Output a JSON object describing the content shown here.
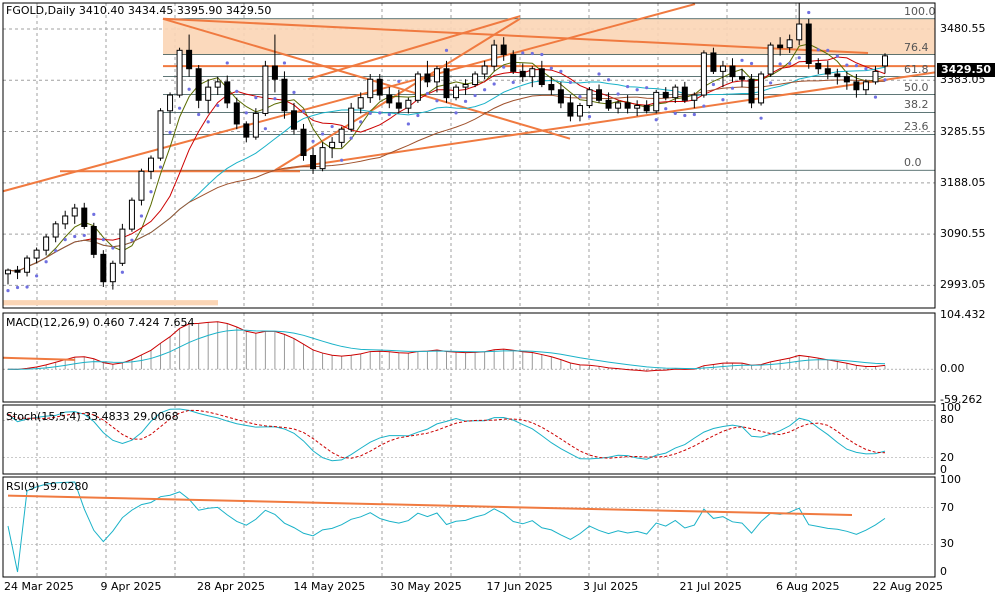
{
  "header": {
    "main": "FGOLD,Daily  3410.40 3434.45 3395.90 3429.50",
    "macd": "MACD(12,26,9) 0.460 7.424 7.654",
    "stoch": "Stoch(15,5,4) 33.4833 29.0068",
    "rsi": "RSI(9) 59.0280"
  },
  "current_price": "3429.50",
  "y_ticks": [
    "3480.55",
    "3383.05",
    "3285.55",
    "3188.05",
    "3090.55",
    "2993.05"
  ],
  "macd_ticks": [
    "104.432",
    "0.00",
    "-59.262"
  ],
  "stoch_ticks": [
    "100",
    "80",
    "20",
    "0"
  ],
  "rsi_ticks": [
    "100",
    "70",
    "30",
    "0"
  ],
  "fib_labels": [
    "100.0",
    "76.4",
    "61.8",
    "50.0",
    "38.2",
    "23.6",
    "0.0"
  ],
  "date_labels": [
    "24 Mar 2025",
    "9 Apr 2025",
    "28 Apr 2025",
    "14 May 2025",
    "30 May 2025",
    "17 Jun 2025",
    "3 Jul 2025",
    "21 Jul 2025",
    "6 Aug 2025",
    "22 Aug 2025"
  ],
  "colors": {
    "candle_up": "#ffffff",
    "candle_down": "#000000",
    "trendline": "#f07a40",
    "zone": "#fbd5b5",
    "ma_red": "#cc0000",
    "ma_cyan": "#1ab2c8",
    "ma_olive": "#5a6b00",
    "ma_brown": "#a0522d",
    "sar": "#7070e0",
    "grid": "#a0a0a0"
  },
  "chart_data": {
    "type": "candlestick",
    "symbol": "FGOLD",
    "timeframe": "Daily",
    "last": {
      "open": 3410.4,
      "high": 3434.45,
      "low": 3395.9,
      "close": 3429.5
    },
    "ylim": [
      2950,
      3530
    ],
    "fib_levels": {
      "100.0": 3500,
      "76.4": 3432,
      "61.8": 3390,
      "50.0": 3356,
      "38.2": 3322,
      "23.6": 3280,
      "0.0": 3212
    },
    "ohlc": [
      [
        3015,
        3025,
        2995,
        3022
      ],
      [
        3022,
        3030,
        3005,
        3018
      ],
      [
        3018,
        3050,
        3010,
        3045
      ],
      [
        3045,
        3065,
        3035,
        3060
      ],
      [
        3060,
        3090,
        3050,
        3085
      ],
      [
        3085,
        3115,
        3075,
        3110
      ],
      [
        3110,
        3135,
        3100,
        3125
      ],
      [
        3125,
        3148,
        3110,
        3140
      ],
      [
        3140,
        3150,
        3100,
        3105
      ],
      [
        3105,
        3112,
        3045,
        3052
      ],
      [
        3052,
        3060,
        2990,
        3000
      ],
      [
        3000,
        3040,
        2985,
        3035
      ],
      [
        3035,
        3110,
        3030,
        3100
      ],
      [
        3100,
        3160,
        3095,
        3155
      ],
      [
        3155,
        3215,
        3145,
        3210
      ],
      [
        3210,
        3240,
        3195,
        3235
      ],
      [
        3235,
        3330,
        3230,
        3325
      ],
      [
        3325,
        3360,
        3300,
        3355
      ],
      [
        3355,
        3445,
        3350,
        3440
      ],
      [
        3440,
        3470,
        3390,
        3405
      ],
      [
        3405,
        3412,
        3330,
        3345
      ],
      [
        3345,
        3385,
        3320,
        3370
      ],
      [
        3370,
        3390,
        3355,
        3380
      ],
      [
        3380,
        3392,
        3330,
        3340
      ],
      [
        3340,
        3350,
        3290,
        3300
      ],
      [
        3300,
        3305,
        3265,
        3275
      ],
      [
        3275,
        3330,
        3270,
        3320
      ],
      [
        3320,
        3420,
        3315,
        3410
      ],
      [
        3410,
        3470,
        3360,
        3385
      ],
      [
        3385,
        3400,
        3310,
        3325
      ],
      [
        3325,
        3340,
        3280,
        3290
      ],
      [
        3290,
        3300,
        3230,
        3240
      ],
      [
        3240,
        3255,
        3205,
        3215
      ],
      [
        3215,
        3265,
        3210,
        3255
      ],
      [
        3255,
        3275,
        3235,
        3265
      ],
      [
        3265,
        3295,
        3255,
        3290
      ],
      [
        3290,
        3340,
        3285,
        3330
      ],
      [
        3330,
        3360,
        3320,
        3350
      ],
      [
        3350,
        3395,
        3340,
        3385
      ],
      [
        3385,
        3395,
        3345,
        3355
      ],
      [
        3355,
        3370,
        3330,
        3340
      ],
      [
        3340,
        3365,
        3320,
        3330
      ],
      [
        3330,
        3350,
        3320,
        3345
      ],
      [
        3345,
        3400,
        3340,
        3395
      ],
      [
        3395,
        3420,
        3370,
        3380
      ],
      [
        3380,
        3410,
        3360,
        3405
      ],
      [
        3405,
        3420,
        3340,
        3350
      ],
      [
        3350,
        3375,
        3345,
        3370
      ],
      [
        3370,
        3385,
        3355,
        3375
      ],
      [
        3375,
        3400,
        3370,
        3395
      ],
      [
        3395,
        3420,
        3385,
        3410
      ],
      [
        3410,
        3460,
        3400,
        3450
      ],
      [
        3450,
        3465,
        3420,
        3432
      ],
      [
        3432,
        3440,
        3395,
        3400
      ],
      [
        3400,
        3415,
        3380,
        3390
      ],
      [
        3390,
        3410,
        3370,
        3405
      ],
      [
        3405,
        3420,
        3370,
        3375
      ],
      [
        3375,
        3390,
        3355,
        3365
      ],
      [
        3365,
        3380,
        3330,
        3340
      ],
      [
        3340,
        3355,
        3305,
        3315
      ],
      [
        3315,
        3340,
        3305,
        3335
      ],
      [
        3335,
        3370,
        3330,
        3365
      ],
      [
        3365,
        3375,
        3340,
        3345
      ],
      [
        3345,
        3360,
        3325,
        3330
      ],
      [
        3330,
        3345,
        3320,
        3340
      ],
      [
        3340,
        3355,
        3320,
        3330
      ],
      [
        3330,
        3345,
        3315,
        3335
      ],
      [
        3335,
        3345,
        3320,
        3325
      ],
      [
        3325,
        3365,
        3320,
        3360
      ],
      [
        3360,
        3370,
        3345,
        3350
      ],
      [
        3350,
        3375,
        3340,
        3370
      ],
      [
        3370,
        3380,
        3340,
        3345
      ],
      [
        3345,
        3360,
        3330,
        3355
      ],
      [
        3355,
        3440,
        3350,
        3435
      ],
      [
        3435,
        3445,
        3395,
        3400
      ],
      [
        3400,
        3420,
        3370,
        3410
      ],
      [
        3410,
        3425,
        3380,
        3390
      ],
      [
        3390,
        3405,
        3370,
        3385
      ],
      [
        3385,
        3395,
        3330,
        3340
      ],
      [
        3340,
        3400,
        3335,
        3395
      ],
      [
        3395,
        3455,
        3390,
        3450
      ],
      [
        3450,
        3465,
        3430,
        3445
      ],
      [
        3445,
        3470,
        3435,
        3460
      ],
      [
        3460,
        3530,
        3450,
        3490
      ],
      [
        3490,
        3500,
        3405,
        3415
      ],
      [
        3415,
        3425,
        3395,
        3405
      ],
      [
        3405,
        3420,
        3385,
        3395
      ],
      [
        3395,
        3405,
        3375,
        3390
      ],
      [
        3390,
        3400,
        3365,
        3380
      ],
      [
        3380,
        3395,
        3350,
        3365
      ],
      [
        3365,
        3385,
        3355,
        3380
      ],
      [
        3380,
        3410,
        3375,
        3400
      ],
      [
        3410.4,
        3434.45,
        3395.9,
        3429.5
      ]
    ]
  }
}
